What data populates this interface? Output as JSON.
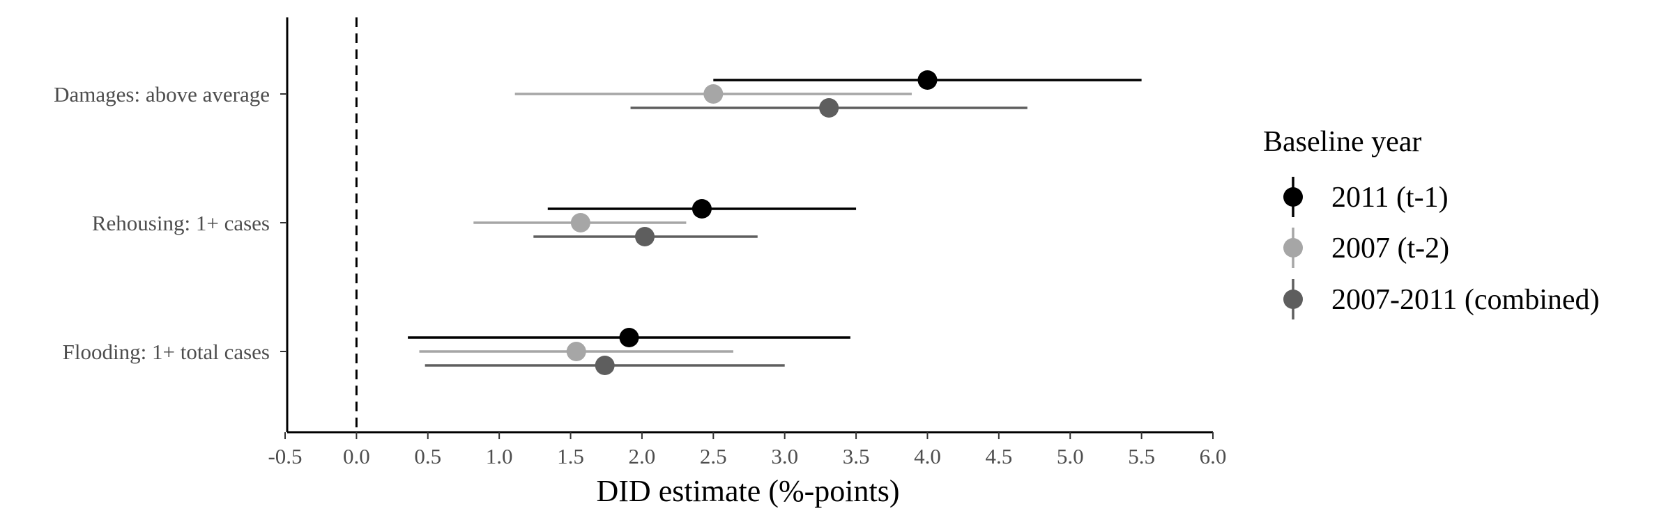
{
  "chart_data": {
    "type": "scatter",
    "subtype": "coefficient-plot",
    "title": "",
    "xlabel": "DID estimate (%-points)",
    "ylabel": "",
    "xlim": [
      -0.5,
      6.0
    ],
    "x_ticks": [
      "-0.5",
      "0.0",
      "0.5",
      "1.0",
      "1.5",
      "2.0",
      "2.5",
      "3.0",
      "3.5",
      "4.0",
      "4.5",
      "5.0",
      "5.5",
      "6.0"
    ],
    "reference_line": {
      "x": 0.0,
      "style": "dashed"
    },
    "categories": [
      "Damages: above average",
      "Rehousing: 1+ cases",
      "Flooding: 1+ total cases"
    ],
    "legend": {
      "title": "Baseline year",
      "position": "right"
    },
    "series": [
      {
        "name": "2011 (t-1)",
        "color": "#000000",
        "points": [
          {
            "category": "Damages: above average",
            "estimate": 4.0,
            "ci_low": 2.5,
            "ci_high": 5.5
          },
          {
            "category": "Rehousing: 1+ cases",
            "estimate": 2.42,
            "ci_low": 1.34,
            "ci_high": 3.5
          },
          {
            "category": "Flooding: 1+ total cases",
            "estimate": 1.91,
            "ci_low": 0.36,
            "ci_high": 3.46
          }
        ]
      },
      {
        "name": "2007 (t-2)",
        "color": "#a6a6a6",
        "points": [
          {
            "category": "Damages: above average",
            "estimate": 2.5,
            "ci_low": 1.11,
            "ci_high": 3.89
          },
          {
            "category": "Rehousing: 1+ cases",
            "estimate": 1.57,
            "ci_low": 0.82,
            "ci_high": 2.31
          },
          {
            "category": "Flooding: 1+ total cases",
            "estimate": 1.54,
            "ci_low": 0.44,
            "ci_high": 2.64
          }
        ]
      },
      {
        "name": "2007-2011 (combined)",
        "color": "#5e5e5e",
        "points": [
          {
            "category": "Damages: above average",
            "estimate": 3.31,
            "ci_low": 1.92,
            "ci_high": 4.7
          },
          {
            "category": "Rehousing: 1+ cases",
            "estimate": 2.02,
            "ci_low": 1.24,
            "ci_high": 2.81
          },
          {
            "category": "Flooding: 1+ total cases",
            "estimate": 1.74,
            "ci_low": 0.48,
            "ci_high": 3.0
          }
        ]
      }
    ]
  }
}
